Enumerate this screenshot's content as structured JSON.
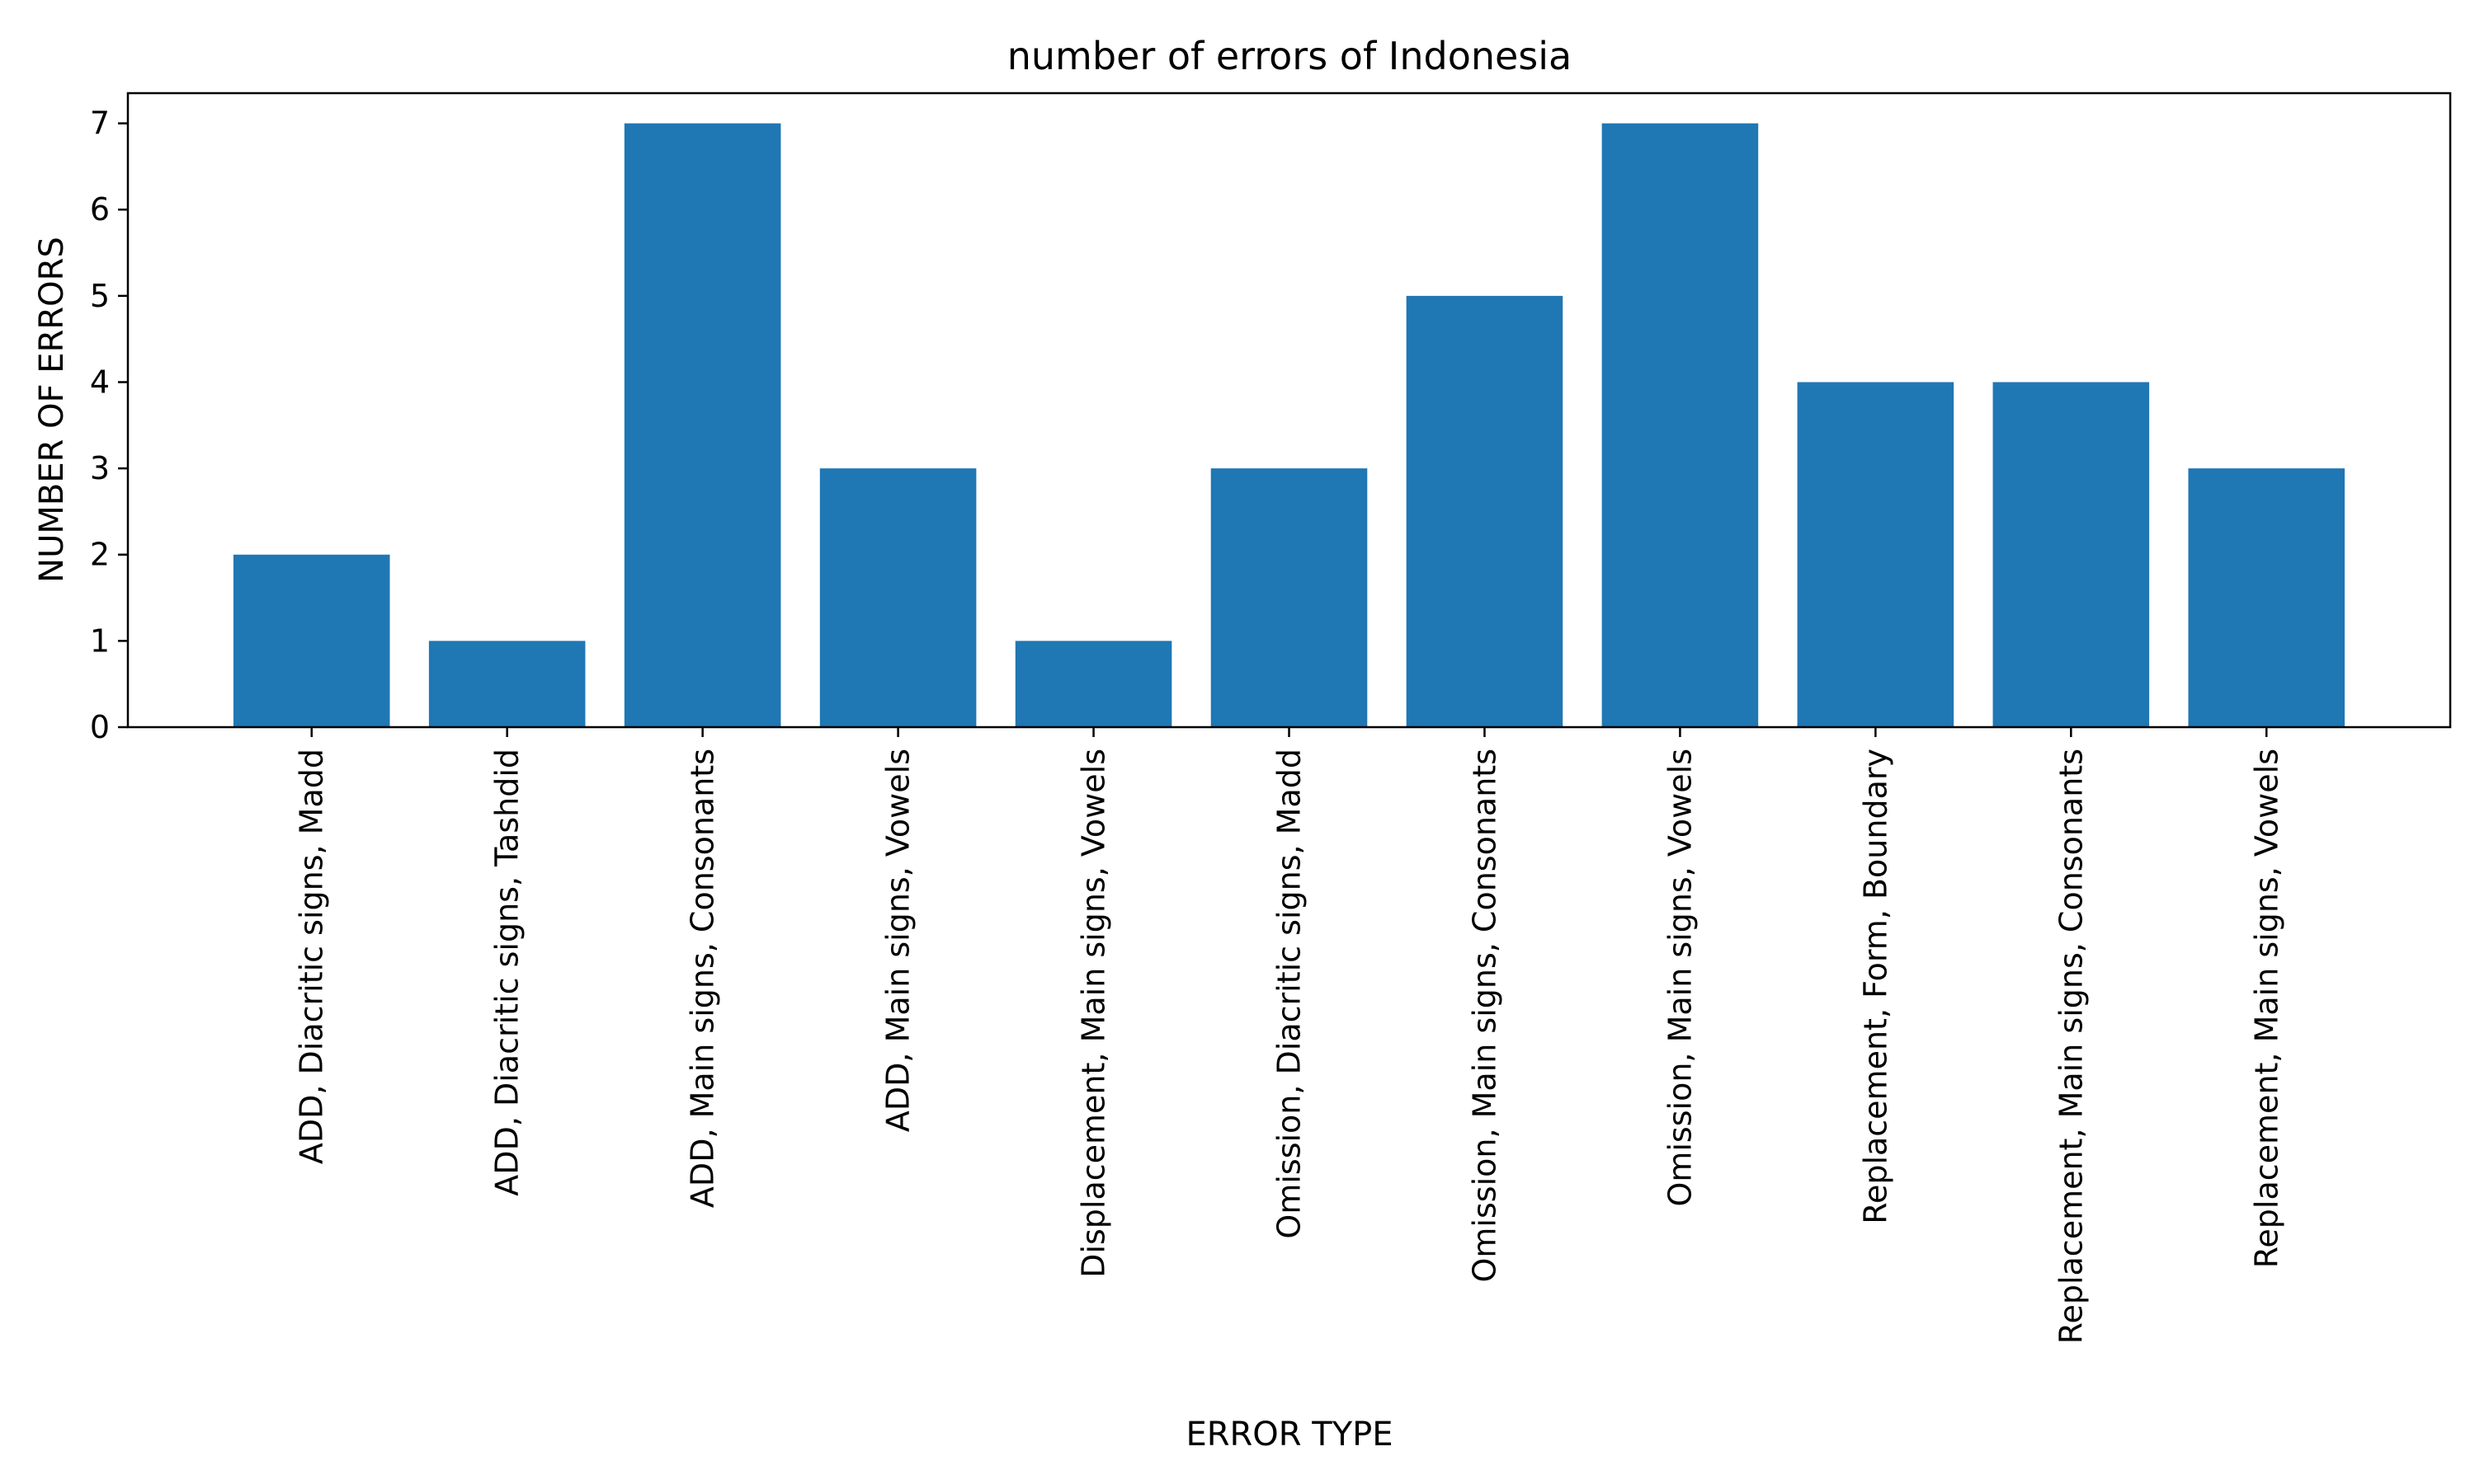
{
  "chart_data": {
    "type": "bar",
    "title": "number of errors of Indonesia",
    "xlabel": "ERROR TYPE",
    "ylabel": "NUMBER OF ERRORS",
    "categories": [
      "ADD, Diacritic signs, Madd",
      "ADD, Diacritic signs, Tashdid",
      "ADD, Main signs, Consonants",
      "ADD, Main signs, Vowels",
      "Displacement, Main signs, Vowels",
      "Omission, Diacritic signs, Madd",
      "Omission, Main signs, Consonants",
      "Omission, Main signs, Vowels",
      "Replacement, Form, Boundary",
      "Replacement, Main signs, Consonants",
      "Replacement, Main signs, Vowels"
    ],
    "values": [
      2,
      1,
      7,
      3,
      1,
      3,
      5,
      7,
      4,
      4,
      3
    ],
    "ylim": [
      0,
      7.35
    ],
    "yticks": [
      0,
      1,
      2,
      3,
      4,
      5,
      6,
      7
    ],
    "grid": false,
    "bar_color": "#1f77b4"
  }
}
